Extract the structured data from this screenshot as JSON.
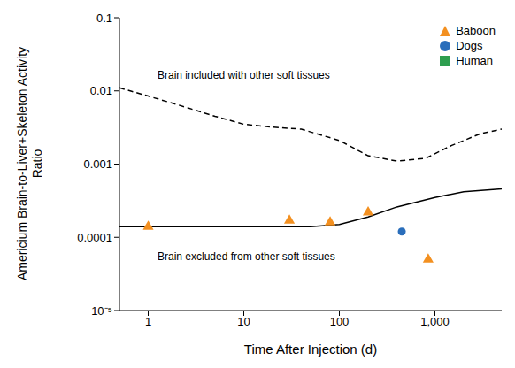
{
  "chart_data": {
    "type": "scatter",
    "x_label": "Time After Injection (d)",
    "y_label": "Americium Brain-to-Liver+Skeleton Activity Ratio",
    "log": true,
    "grid": false,
    "legend": "top-right",
    "xlim": [
      0.5,
      5000
    ],
    "ylim": [
      1e-05,
      0.1
    ],
    "xticks": [
      1,
      10,
      100,
      {
        "value": 1000,
        "label": "1,000"
      }
    ],
    "yticks": [
      {
        "value": 1e-05,
        "label": "10⁻⁵"
      },
      0.0001,
      0.001,
      0.01,
      0.1
    ],
    "annotations": [
      "Brain included with other soft tissues",
      "Brain excluded from other soft tissues"
    ],
    "series": [
      {
        "type": "line",
        "color": "#000000",
        "line_style": "dashed",
        "x": [
          0.5,
          1,
          2,
          5,
          10,
          20,
          40,
          100,
          200,
          400,
          800,
          1500,
          3000,
          5000
        ],
        "values": [
          0.011,
          0.0085,
          0.0065,
          0.0045,
          0.0035,
          0.0032,
          0.003,
          0.0021,
          0.0013,
          0.0011,
          0.0012,
          0.0018,
          0.0026,
          0.003
        ]
      },
      {
        "type": "line",
        "color": "#000000",
        "line_style": "solid",
        "x": [
          0.5,
          1,
          10,
          50,
          100,
          200,
          400,
          1000,
          2000,
          5000
        ],
        "values": [
          0.00014,
          0.00014,
          0.00014,
          0.00014,
          0.00015,
          0.00019,
          0.00026,
          0.00035,
          0.00042,
          0.00046
        ]
      },
      {
        "type": "scatter",
        "name": "Baboon",
        "color": "#f39020",
        "marker": "triangle",
        "x": [
          1,
          30,
          80,
          200,
          850
        ],
        "values": [
          0.00014,
          0.00017,
          0.00016,
          0.00022,
          5e-05
        ]
      },
      {
        "type": "scatter",
        "name": "Dogs",
        "color": "#2a6ebb",
        "marker": "circle",
        "x": [
          450
        ],
        "values": [
          0.00012
        ]
      },
      {
        "type": "scatter",
        "name": "Human",
        "color": "#2e9e4f",
        "marker": "square",
        "x": [],
        "values": []
      }
    ]
  }
}
